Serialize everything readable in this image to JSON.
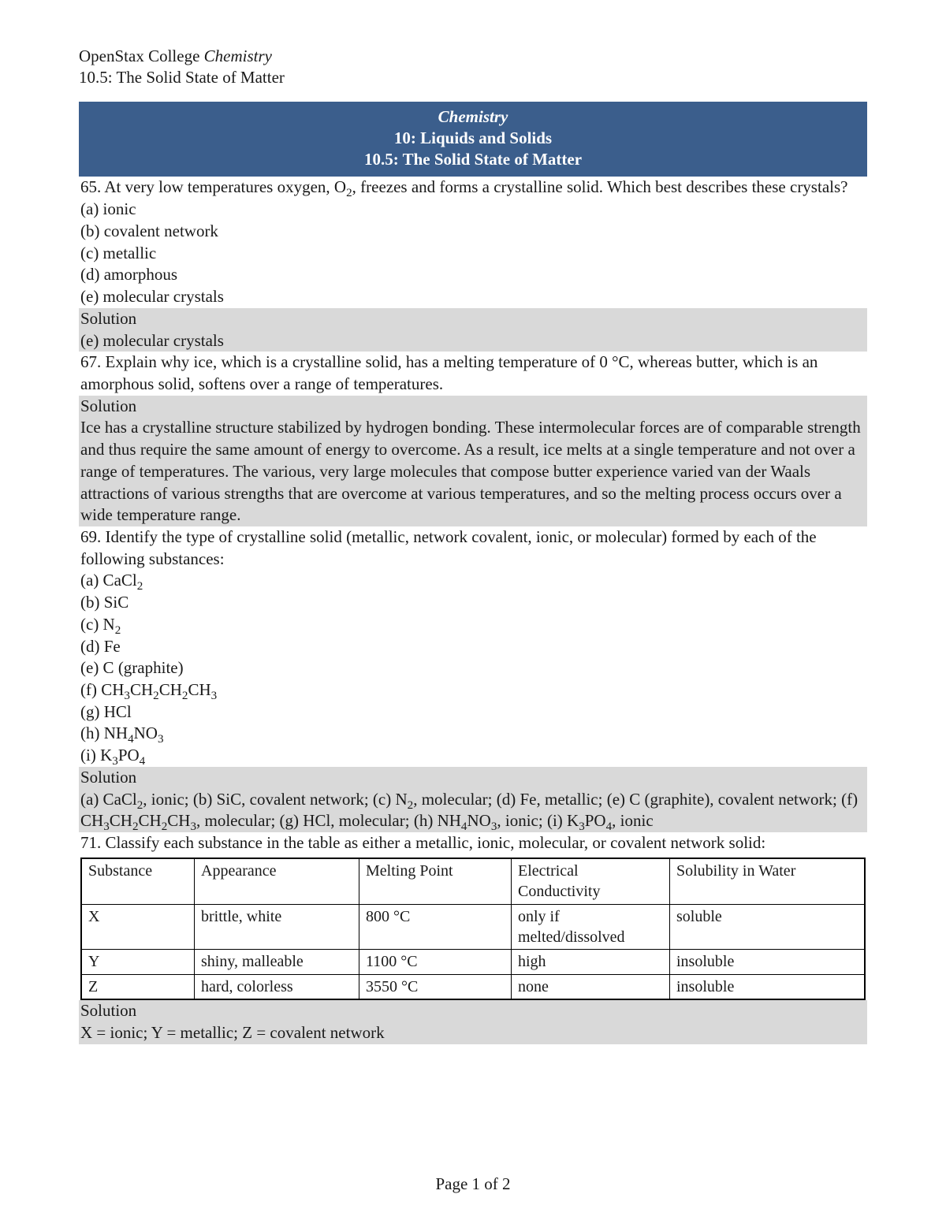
{
  "header": {
    "source": "OpenStax College ",
    "source_italic": "Chemistry",
    "section": "10.5: The Solid State of Matter"
  },
  "banner": {
    "title": "Chemistry",
    "chapter": "10: Liquids and Solids",
    "section": "10.5: The Solid State of Matter"
  },
  "q65": {
    "stem_a": "65. At very low temperatures oxygen, O",
    "stem_sub": "2",
    "stem_b": ", freezes and forms a crystalline solid. Which best describes these crystals?",
    "a": "(a) ionic",
    "b": "(b) covalent network",
    "c": "(c) metallic",
    "d": "(d) amorphous",
    "e": "(e) molecular crystals",
    "sol_label": "Solution",
    "sol": "(e) molecular crystals"
  },
  "q67": {
    "stem": "67. Explain why ice, which is a crystalline solid, has a melting temperature of 0 °C, whereas butter, which is an amorphous solid, softens over a range of temperatures.",
    "sol_label": "Solution",
    "sol": "Ice has a crystalline structure stabilized by hydrogen bonding. These intermolecular forces are of comparable strength and thus require the same amount of energy to overcome. As a result, ice melts at a single temperature and not over a range of temperatures. The various, very large molecules that compose butter experience varied van der Waals attractions of various strengths that are overcome at various temperatures, and so the melting process occurs over a wide temperature range."
  },
  "q69": {
    "stem": "69. Identify the type of crystalline solid (metallic, network covalent, ionic, or molecular) formed by each of the following substances:",
    "a_pre": "(a) CaCl",
    "a_sub": "2",
    "b": "(b) SiC",
    "c_pre": "(c) N",
    "c_sub": "2",
    "d": "(d) Fe",
    "e": "(e) C (graphite)",
    "f_pre": "(f) CH",
    "f_s1": "3",
    "f_mid1": "CH",
    "f_s2": "2",
    "f_mid2": "CH",
    "f_s3": "2",
    "f_mid3": "CH",
    "f_s4": "3",
    "g": "(g) HCl",
    "h_pre": "(h) NH",
    "h_s1": "4",
    "h_mid": "NO",
    "h_s2": "3",
    "i_pre": "(i) K",
    "i_s1": "3",
    "i_mid": "PO",
    "i_s2": "4",
    "sol_label": "Solution",
    "sol_a1": "(a) CaCl",
    "sol_a1s": "2",
    "sol_a2": ", ionic; (b) SiC, covalent network; (c) N",
    "sol_a2s": "2",
    "sol_a3": ", molecular; (d) Fe, metallic; (e) C (graphite), covalent network; (f) CH",
    "sol_f1": "3",
    "sol_f_m1": "CH",
    "sol_f2": "2",
    "sol_f_m2": "CH",
    "sol_f3": "2",
    "sol_f_m3": "CH",
    "sol_f4": "3",
    "sol_a4": ", molecular; (g) HCl, molecular; (h) NH",
    "sol_h1": "4",
    "sol_h_m": "NO",
    "sol_h2": "3",
    "sol_a5": ", ionic; (i) K",
    "sol_i1": "3",
    "sol_i_m": "PO",
    "sol_i2": "4",
    "sol_a6": ", ionic"
  },
  "q71": {
    "stem": "71. Classify each substance in the table as either a metallic, ionic, molecular, or covalent network solid:",
    "table": {
      "headers": [
        "Substance",
        "Appearance",
        "Melting Point",
        "Electrical Conductivity",
        "Solubility in Water"
      ],
      "rows": [
        [
          "X",
          "brittle, white",
          "800 °C",
          "only if melted/dissolved",
          "soluble"
        ],
        [
          "Y",
          "shiny, malleable",
          "1100 °C",
          "high",
          "insoluble"
        ],
        [
          "Z",
          "hard, colorless",
          "3550 °C",
          "none",
          "insoluble"
        ]
      ],
      "col_widths": [
        "126px",
        "192px",
        "176px",
        "184px",
        "auto"
      ]
    },
    "sol_label": "Solution",
    "sol": "X = ionic; Y = metallic; Z = covalent network"
  },
  "footer": "Page 1 of 2",
  "colors": {
    "banner_bg": "#3b5e8c",
    "banner_text": "#ffffff",
    "solution_bg": "#d9d9d9",
    "text": "#1a1a1a"
  }
}
